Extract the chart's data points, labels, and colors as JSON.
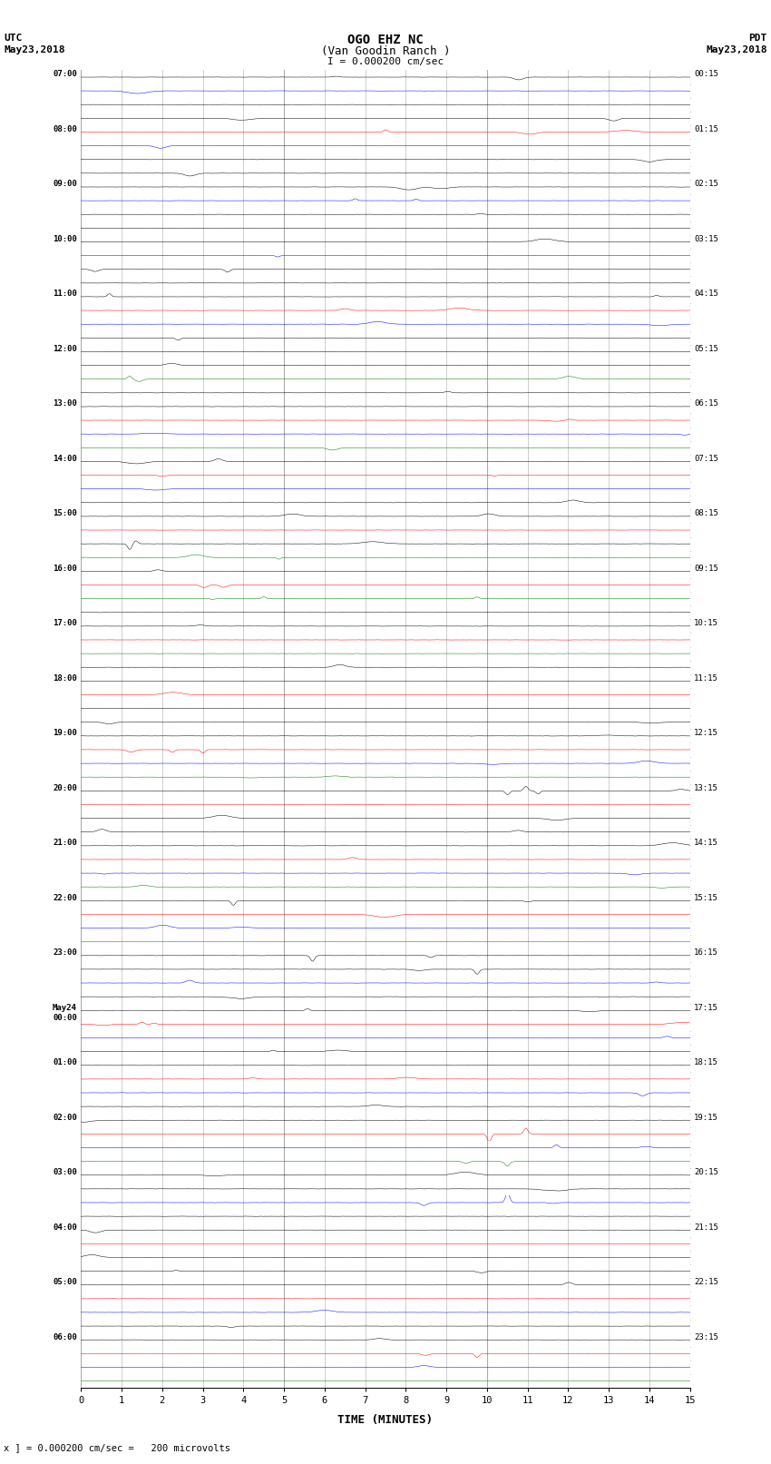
{
  "title_line1": "OGO EHZ NC",
  "title_line2": "(Van Goodin Ranch )",
  "title_line3": "I = 0.000200 cm/sec",
  "left_label_top": "UTC",
  "left_label_date": "May23,2018",
  "right_label_top": "PDT",
  "right_label_date": "May23,2018",
  "bottom_label": "TIME (MINUTES)",
  "bottom_note": "x ] = 0.000200 cm/sec =   200 microvolts",
  "utc_times": [
    "07:00",
    "08:00",
    "09:00",
    "10:00",
    "11:00",
    "12:00",
    "13:00",
    "14:00",
    "15:00",
    "16:00",
    "17:00",
    "18:00",
    "19:00",
    "20:00",
    "21:00",
    "22:00",
    "23:00",
    "May24\n00:00",
    "01:00",
    "02:00",
    "03:00",
    "04:00",
    "05:00",
    "06:00"
  ],
  "pdt_times": [
    "00:15",
    "01:15",
    "02:15",
    "03:15",
    "04:15",
    "05:15",
    "06:15",
    "07:15",
    "08:15",
    "09:15",
    "10:15",
    "11:15",
    "12:15",
    "13:15",
    "14:15",
    "15:15",
    "16:15",
    "17:15",
    "18:15",
    "19:15",
    "20:15",
    "21:15",
    "22:15",
    "23:15"
  ],
  "n_hours": 24,
  "traces_per_hour": 4,
  "n_minutes": 15,
  "bg_color": "#ffffff",
  "grid_color": "#aaaaaa",
  "trace_colors_per_hour": [
    "black",
    "blue",
    "black",
    "black",
    "red",
    "blue",
    "black",
    "black",
    "black",
    "blue",
    "black",
    "black",
    "black",
    "blue",
    "black",
    "black",
    "black",
    "red",
    "blue",
    "black",
    "black",
    "black",
    "green",
    "black",
    "black",
    "red",
    "blue",
    "green",
    "black",
    "red",
    "blue",
    "black",
    "black",
    "red",
    "black",
    "green",
    "black",
    "red",
    "green",
    "black",
    "black",
    "red",
    "green",
    "black",
    "black",
    "red",
    "black",
    "black",
    "black",
    "red",
    "blue",
    "green",
    "black",
    "red",
    "black",
    "black",
    "black",
    "red",
    "blue",
    "green",
    "black",
    "red",
    "blue",
    "green",
    "black",
    "black",
    "blue",
    "black",
    "black",
    "red",
    "blue",
    "black",
    "black",
    "red",
    "blue",
    "black",
    "black",
    "red",
    "blue",
    "green",
    "black",
    "black",
    "blue",
    "black",
    "black",
    "red",
    "black",
    "black",
    "black",
    "red",
    "blue",
    "black",
    "black",
    "red",
    "blue",
    "green"
  ],
  "noise_amplitude": 0.04,
  "fig_width": 8.5,
  "fig_height": 16.13
}
